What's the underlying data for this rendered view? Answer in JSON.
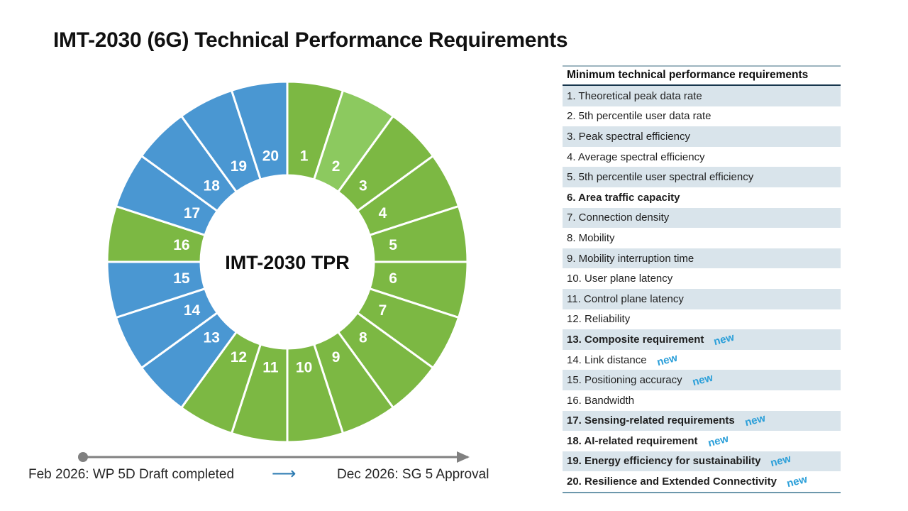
{
  "page": {
    "title": "IMT-2030 (6G) Technical Performance Requirements"
  },
  "chart_data": {
    "type": "pie",
    "subtype": "donut",
    "direction": "clockwise",
    "start_angle_deg": 0,
    "equal_segments": true,
    "value_per_segment": 1,
    "center_label": "IMT-2030 TPR",
    "segments": [
      {
        "number": "1",
        "color": "#7cb843"
      },
      {
        "number": "2",
        "color": "#8cc95f"
      },
      {
        "number": "3",
        "color": "#7cb843"
      },
      {
        "number": "4",
        "color": "#7cb843"
      },
      {
        "number": "5",
        "color": "#7cb843"
      },
      {
        "number": "6",
        "color": "#7cb843"
      },
      {
        "number": "7",
        "color": "#7cb843"
      },
      {
        "number": "8",
        "color": "#7cb843"
      },
      {
        "number": "9",
        "color": "#7cb843"
      },
      {
        "number": "10",
        "color": "#7cb843"
      },
      {
        "number": "11",
        "color": "#7cb843"
      },
      {
        "number": "12",
        "color": "#7cb843"
      },
      {
        "number": "13",
        "color": "#4a97d2"
      },
      {
        "number": "14",
        "color": "#4a97d2"
      },
      {
        "number": "15",
        "color": "#4a97d2"
      },
      {
        "number": "16",
        "color": "#7cb843"
      },
      {
        "number": "17",
        "color": "#4a97d2"
      },
      {
        "number": "18",
        "color": "#4a97d2"
      },
      {
        "number": "19",
        "color": "#4a97d2"
      },
      {
        "number": "20",
        "color": "#4a97d2"
      }
    ]
  },
  "table": {
    "header": "Minimum technical performance requirements",
    "new_badge": "new",
    "rows": [
      {
        "label": "1. Theoretical peak data rate",
        "bold": false,
        "new": false
      },
      {
        "label": "2. 5th percentile user data rate",
        "bold": false,
        "new": false
      },
      {
        "label": "3. Peak spectral efficiency",
        "bold": false,
        "new": false
      },
      {
        "label": "4. Average spectral efficiency",
        "bold": false,
        "new": false
      },
      {
        "label": "5. 5th percentile user spectral efficiency",
        "bold": false,
        "new": false
      },
      {
        "label": "6. Area traffic capacity",
        "bold": true,
        "new": false
      },
      {
        "label": "7. Connection density",
        "bold": false,
        "new": false
      },
      {
        "label": "8. Mobility",
        "bold": false,
        "new": false
      },
      {
        "label": "9. Mobility interruption time",
        "bold": false,
        "new": false
      },
      {
        "label": "10. User plane latency",
        "bold": false,
        "new": false
      },
      {
        "label": "11. Control plane latency",
        "bold": false,
        "new": false
      },
      {
        "label": "12. Reliability",
        "bold": false,
        "new": false
      },
      {
        "label": "13. Composite requirement",
        "bold": true,
        "new": true
      },
      {
        "label": "14. Link distance",
        "bold": false,
        "new": true
      },
      {
        "label": "15. Positioning accuracy",
        "bold": false,
        "new": true
      },
      {
        "label": "16. Bandwidth",
        "bold": false,
        "new": false
      },
      {
        "label": "17. Sensing-related requirements",
        "bold": true,
        "new": true
      },
      {
        "label": "18. AI-related requirement",
        "bold": true,
        "new": true
      },
      {
        "label": "19. Energy efficiency for sustainability",
        "bold": true,
        "new": true
      },
      {
        "label": "20. Resilience and Extended Connectivity",
        "bold": true,
        "new": true
      }
    ]
  },
  "timeline": {
    "start_label": "Feb 2026: WP 5D Draft completed",
    "arrow_glyph": "⟶",
    "end_label": "Dec 2026: SG 5 Approval"
  },
  "colors": {
    "green": "#7cb843",
    "light_green": "#8cc95f",
    "blue": "#4a97d2",
    "new_badge_blue": "#2b9fd9",
    "row_shade": "#d9e4eb",
    "timeline_gray": "#808080",
    "timeline_arrow_blue": "#2878b0"
  }
}
